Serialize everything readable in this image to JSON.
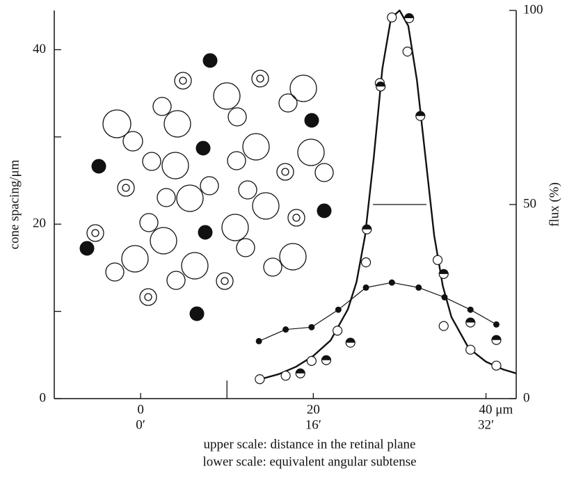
{
  "chart_data": {
    "type": "line",
    "ylabel": "cone spacing/μm",
    "y2label": "flux (%)",
    "caption": [
      "upper scale: distance in the retinal plane",
      "lower scale: equivalent angular subtense"
    ],
    "xlim": [
      -10,
      43.5
    ],
    "ylim": [
      0,
      44.5
    ],
    "y2lim": [
      0,
      100
    ],
    "xticks": [
      0,
      20,
      {
        "value": 40,
        "label": "40 μm"
      }
    ],
    "xminorticks": [
      10
    ],
    "lower_xticks": [
      {
        "value": 0,
        "label": "0′"
      },
      {
        "value": 20,
        "label": "16′"
      },
      {
        "value": 40,
        "label": "32′"
      }
    ],
    "yticks": [
      0,
      20,
      40
    ],
    "yminorticks": [
      10,
      30
    ],
    "y2ticks": [
      0,
      50,
      100
    ],
    "half_width_line": {
      "x": [
        26.9,
        33.1
      ],
      "y": 50
    },
    "series": [
      {
        "color": "#111111",
        "axis": "y2",
        "line": true,
        "marker": "none",
        "x": [
          13.7,
          16,
          18,
          20,
          22,
          24,
          25,
          26,
          27,
          28,
          29,
          30,
          31,
          32,
          33,
          34,
          35,
          36,
          38,
          40,
          42,
          43.5
        ],
        "values": [
          4.9,
          6.3,
          8.2,
          11,
          15,
          23,
          30,
          42,
          62,
          85,
          98,
          100,
          96,
          82,
          62,
          42,
          29,
          21,
          13,
          9.5,
          7.5,
          6.5
        ]
      },
      {
        "color": "#111111",
        "axis": "y2",
        "line": false,
        "marker": "open",
        "x": [
          13.8,
          16.8,
          19.8,
          22.8,
          26.1,
          27.7,
          29.1,
          30.9,
          34.4,
          35.1,
          38.2,
          41.2
        ],
        "values": [
          5.0,
          5.9,
          9.7,
          17.5,
          35.1,
          81.3,
          98.2,
          89.4,
          35.7,
          18.7,
          12.6,
          8.5
        ]
      },
      {
        "color": "#111111",
        "axis": "y2",
        "line": false,
        "marker": "half",
        "x": [
          18.5,
          21.5,
          24.3,
          26.2,
          27.8,
          31.1,
          32.4,
          35.1,
          38.2,
          41.2
        ],
        "values": [
          6.5,
          9.9,
          14.4,
          43.6,
          80.4,
          98.0,
          72.8,
          32.1,
          19.6,
          15.1
        ]
      },
      {
        "color": "#111111",
        "axis": "y2",
        "line": true,
        "marker": "dot",
        "x": [
          13.7,
          16.8,
          19.8,
          22.9,
          26.1,
          29.1,
          32.2,
          35.2,
          38.2,
          41.2
        ],
        "values": [
          14.8,
          17.8,
          18.4,
          22.9,
          28.6,
          29.9,
          28.6,
          26.1,
          22.9,
          19.1
        ]
      }
    ]
  }
}
